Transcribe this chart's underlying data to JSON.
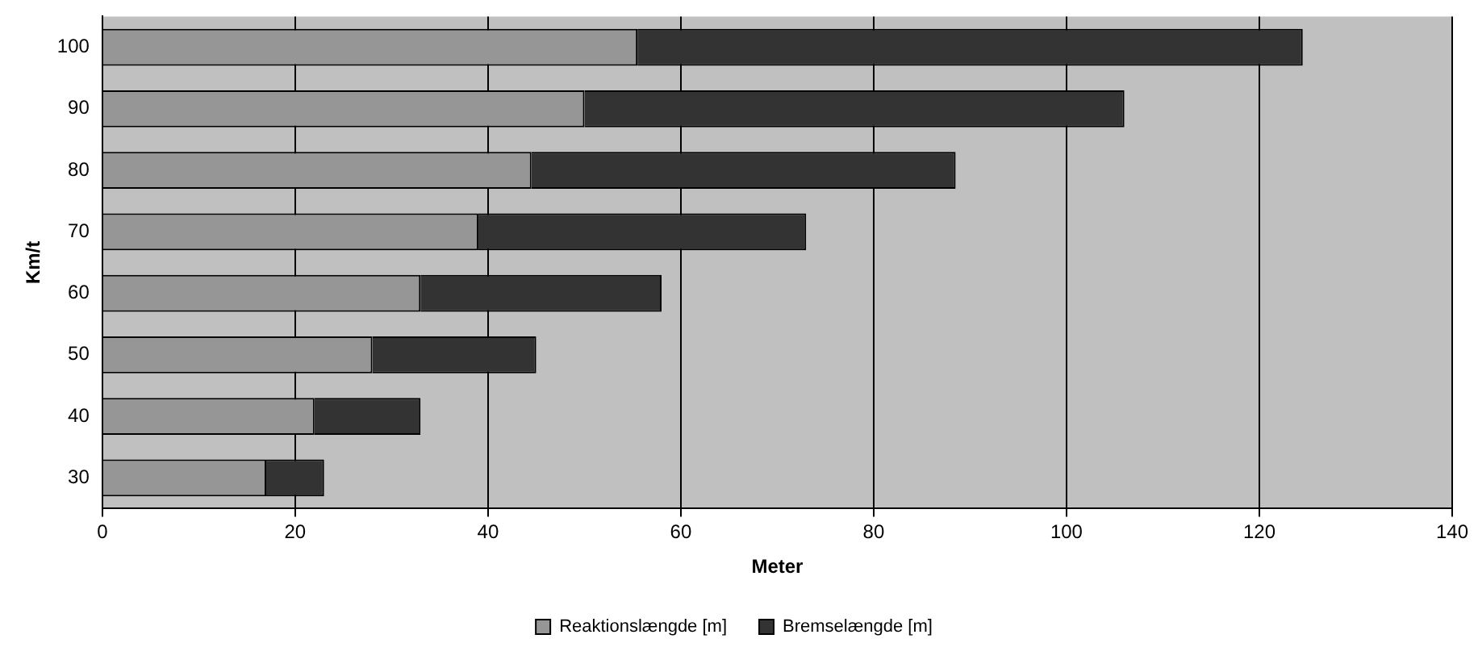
{
  "chart_data": {
    "type": "bar",
    "orientation": "horizontal",
    "stacked": true,
    "xlabel": "Meter",
    "ylabel": "Km/t",
    "categories": [
      "100",
      "90",
      "80",
      "70",
      "60",
      "50",
      "40",
      "30"
    ],
    "series": [
      {
        "name": "Reaktionslængde [m]",
        "color": "#969696",
        "values": [
          55.5,
          50,
          44.5,
          39,
          33,
          28,
          22,
          17
        ]
      },
      {
        "name": "Bremselængde [m]",
        "color": "#333333",
        "values": [
          69,
          56,
          44,
          34,
          25,
          17,
          11,
          6
        ]
      }
    ],
    "xlim": [
      0,
      140
    ],
    "xticks": [
      0,
      20,
      40,
      60,
      80,
      100,
      120,
      140
    ],
    "grid": "x",
    "legend": "bottom"
  }
}
